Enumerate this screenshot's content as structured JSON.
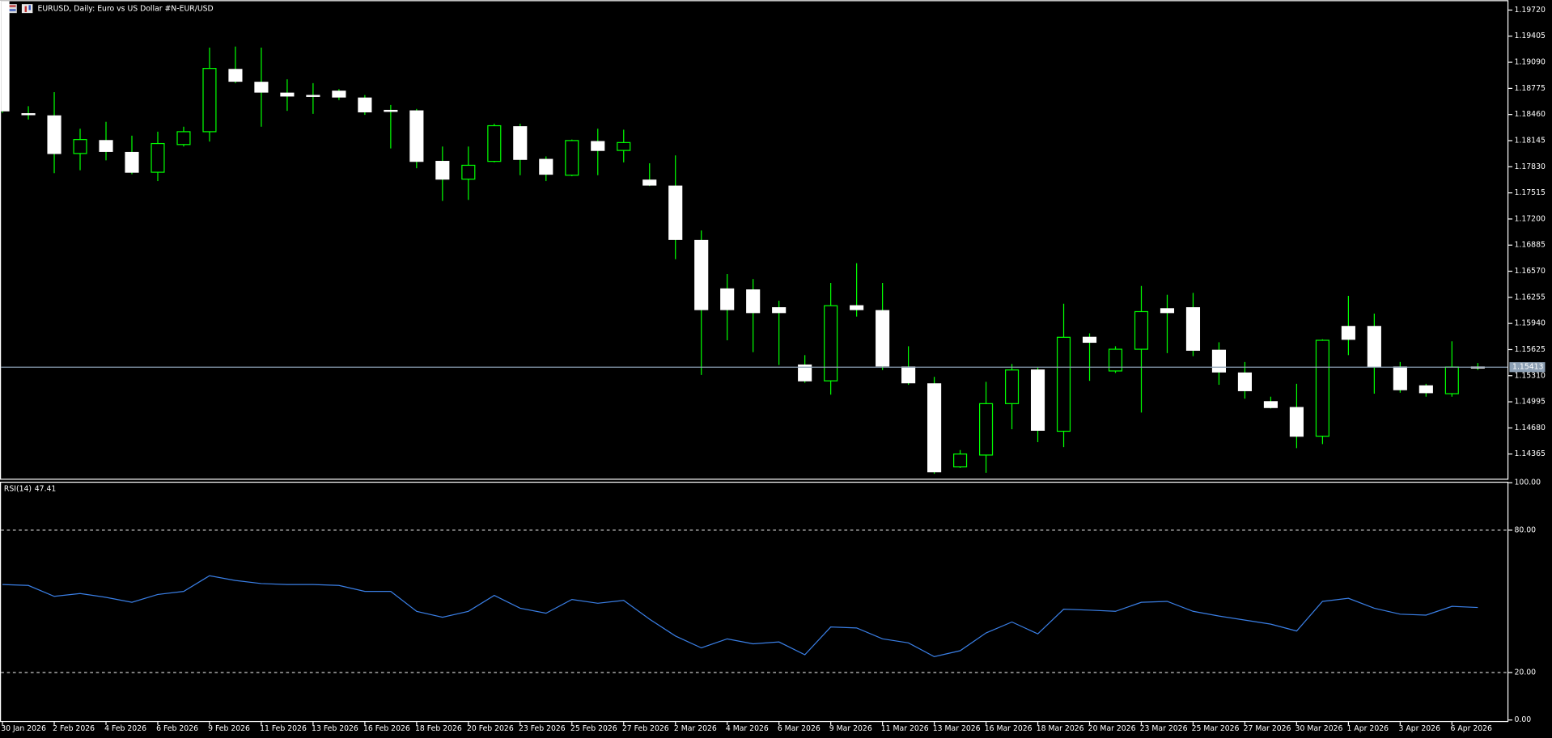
{
  "chart_data": [
    {
      "type": "candlestick",
      "title": "EURUSD, Daily:  Euro vs US Dollar #N-EUR/USD",
      "categories": [
        "30 Jan 2026",
        null,
        "2 Feb 2026",
        null,
        "4 Feb 2026",
        null,
        "6 Feb 2026",
        null,
        "9 Feb 2026",
        null,
        "11 Feb 2026",
        null,
        "13 Feb 2026",
        null,
        "16 Feb 2026",
        null,
        "18 Feb 2026",
        null,
        "20 Feb 2026",
        null,
        "23 Feb 2026",
        null,
        "25 Feb 2026",
        null,
        "27 Feb 2026",
        null,
        "2 Mar 2026",
        null,
        "4 Mar 2026",
        null,
        "6 Mar 2026",
        null,
        "9 Mar 2026",
        null,
        "11 Mar 2026",
        null,
        "13 Mar 2026",
        null,
        "16 Mar 2026",
        null,
        "18 Mar 2026",
        null,
        "20 Mar 2026",
        null,
        "23 Mar 2026",
        null,
        "25 Mar 2026",
        null,
        "27 Mar 2026",
        null,
        "30 Mar 2026",
        null,
        "1 Apr 2026",
        null,
        "3 Apr 2026",
        null,
        "6 Apr 2026",
        null
      ],
      "open": [
        1.1982,
        1.1847,
        1.18444,
        1.1799,
        1.18146,
        1.18003,
        1.17764,
        1.18098,
        1.18253,
        1.19004,
        1.18849,
        1.18718,
        1.1869,
        1.18742,
        1.18659,
        1.1851,
        1.18504,
        1.17895,
        1.17681,
        1.17895,
        1.18313,
        1.17919,
        1.17728,
        1.18134,
        1.18027,
        1.17669,
        1.17597,
        1.16941,
        1.16357,
        1.16345,
        1.1613,
        1.15439,
        1.15248,
        1.16154,
        1.16095,
        1.15415,
        1.15212,
        1.1421,
        1.14353,
        1.14973,
        1.15379,
        1.1464,
        1.15773,
        1.15367,
        1.15629,
        1.16118,
        1.1613,
        1.15617,
        1.15343,
        1.14997,
        1.14926,
        1.1458,
        1.15904,
        1.15904,
        1.15415,
        1.15188,
        1.15093,
        1.15415
      ],
      "high": [
        1.1982,
        1.1856,
        1.1873,
        1.18289,
        1.18372,
        1.18205,
        1.18253,
        1.18313,
        1.19267,
        1.19279,
        1.19267,
        1.18885,
        1.18838,
        1.18766,
        1.18695,
        1.18575,
        1.18527,
        1.18074,
        1.18074,
        1.18349,
        1.18349,
        1.17955,
        1.18158,
        1.18289,
        1.18277,
        1.17872,
        1.17967,
        1.17061,
        1.16536,
        1.16476,
        1.16214,
        1.15558,
        1.16429,
        1.16667,
        1.16429,
        1.15665,
        1.15296,
        1.14413,
        1.15236,
        1.15451,
        1.15415,
        1.16178,
        1.1582,
        1.15665,
        1.16393,
        1.16286,
        1.16309,
        1.15713,
        1.15475,
        1.15057,
        1.15212,
        1.15749,
        1.16273,
        1.16059,
        1.15475,
        1.15212,
        1.15725,
        1.15463
      ],
      "low": [
        1.1848,
        1.184,
        1.17752,
        1.17788,
        1.17907,
        1.1774,
        1.17657,
        1.18074,
        1.18134,
        1.18838,
        1.18313,
        1.18504,
        1.18468,
        1.18635,
        1.18456,
        1.18051,
        1.17812,
        1.17418,
        1.1743,
        1.17883,
        1.17728,
        1.17657,
        1.17716,
        1.17728,
        1.17883,
        1.17597,
        1.16715,
        1.15319,
        1.15737,
        1.15594,
        1.15439,
        1.15224,
        1.15081,
        1.16023,
        1.15379,
        1.152,
        1.14127,
        1.14198,
        1.14139,
        1.14664,
        1.14508,
        1.14449,
        1.15248,
        1.15343,
        1.14866,
        1.15582,
        1.15546,
        1.152,
        1.15033,
        1.14914,
        1.14437,
        1.14485,
        1.15558,
        1.15093,
        1.15105,
        1.15057,
        1.15057,
        1.15379
      ],
      "close": [
        1.18504,
        1.1846,
        1.1799,
        1.18158,
        1.18015,
        1.17764,
        1.1811,
        1.18253,
        1.19016,
        1.18861,
        1.1873,
        1.18683,
        1.1868,
        1.18671,
        1.18492,
        1.18504,
        1.17895,
        1.17681,
        1.17848,
        1.18325,
        1.17919,
        1.1774,
        1.18146,
        1.18027,
        1.18122,
        1.17609,
        1.16953,
        1.16107,
        1.16107,
        1.16071,
        1.16071,
        1.15248,
        1.16154,
        1.16107,
        1.15427,
        1.15224,
        1.14151,
        1.14365,
        1.14973,
        1.15379,
        1.14652,
        1.15773,
        1.15713,
        1.15629,
        1.16083,
        1.16071,
        1.15617,
        1.15355,
        1.15129,
        1.14926,
        1.1458,
        1.15737,
        1.15749,
        1.15415,
        1.15141,
        1.15105,
        1.15415,
        1.15413
      ],
      "up_color": "#00ff00",
      "down_color": "#ffffff",
      "wick_color": "#00ff00",
      "ylim": [
        1.14067,
        1.19827
      ],
      "yticks": [
        {
          "value": 1.1972,
          "label": "1.19720"
        },
        1.19405,
        {
          "value": 1.1909,
          "label": "1.19090"
        },
        1.18775,
        {
          "value": 1.1846,
          "label": "1.18460"
        },
        1.18145,
        {
          "value": 1.1783,
          "label": "1.17830"
        },
        1.17515,
        {
          "value": 1.172,
          "label": "1.17200"
        },
        1.16885,
        {
          "value": 1.1657,
          "label": "1.16570"
        },
        1.16255,
        {
          "value": 1.1594,
          "label": "1.15940"
        },
        1.15625,
        {
          "value": 1.1531,
          "label": "1.15310"
        },
        1.14995,
        {
          "value": 1.1468,
          "label": "1.14680"
        },
        1.14365
      ],
      "current_price": 1.15413,
      "current_price_color": "#8da0b4"
    },
    {
      "type": "line",
      "title": "RSI(14)",
      "color": "#3a7fe6",
      "values": [
        57.1,
        56.7,
        52.1,
        53.3,
        51.7,
        49.6,
        52.9,
        54.2,
        60.8,
        58.8,
        57.5,
        57.1,
        57.1,
        56.7,
        54.2,
        54.2,
        45.8,
        43.3,
        45.8,
        52.5,
        47.1,
        45.0,
        50.8,
        49.2,
        50.4,
        42.5,
        35.4,
        30.4,
        34.2,
        32.1,
        32.9,
        27.5,
        39.2,
        38.8,
        34.2,
        32.5,
        26.7,
        29.2,
        36.7,
        41.3,
        36.3,
        46.7,
        46.3,
        45.8,
        49.6,
        50.0,
        45.8,
        43.8,
        42.1,
        40.4,
        37.5,
        50.0,
        51.3,
        47.1,
        44.6,
        44.2,
        47.9,
        47.41
      ],
      "ylim": [
        0,
        100
      ],
      "yticks": [
        {
          "value": 100,
          "label": "100.00"
        },
        {
          "value": 0,
          "label": "0.00"
        }
      ],
      "levels": [
        {
          "value": 80,
          "label": "80.00"
        },
        {
          "value": 20,
          "label": "20.00"
        }
      ],
      "level_color": "#c8c8c8"
    }
  ]
}
